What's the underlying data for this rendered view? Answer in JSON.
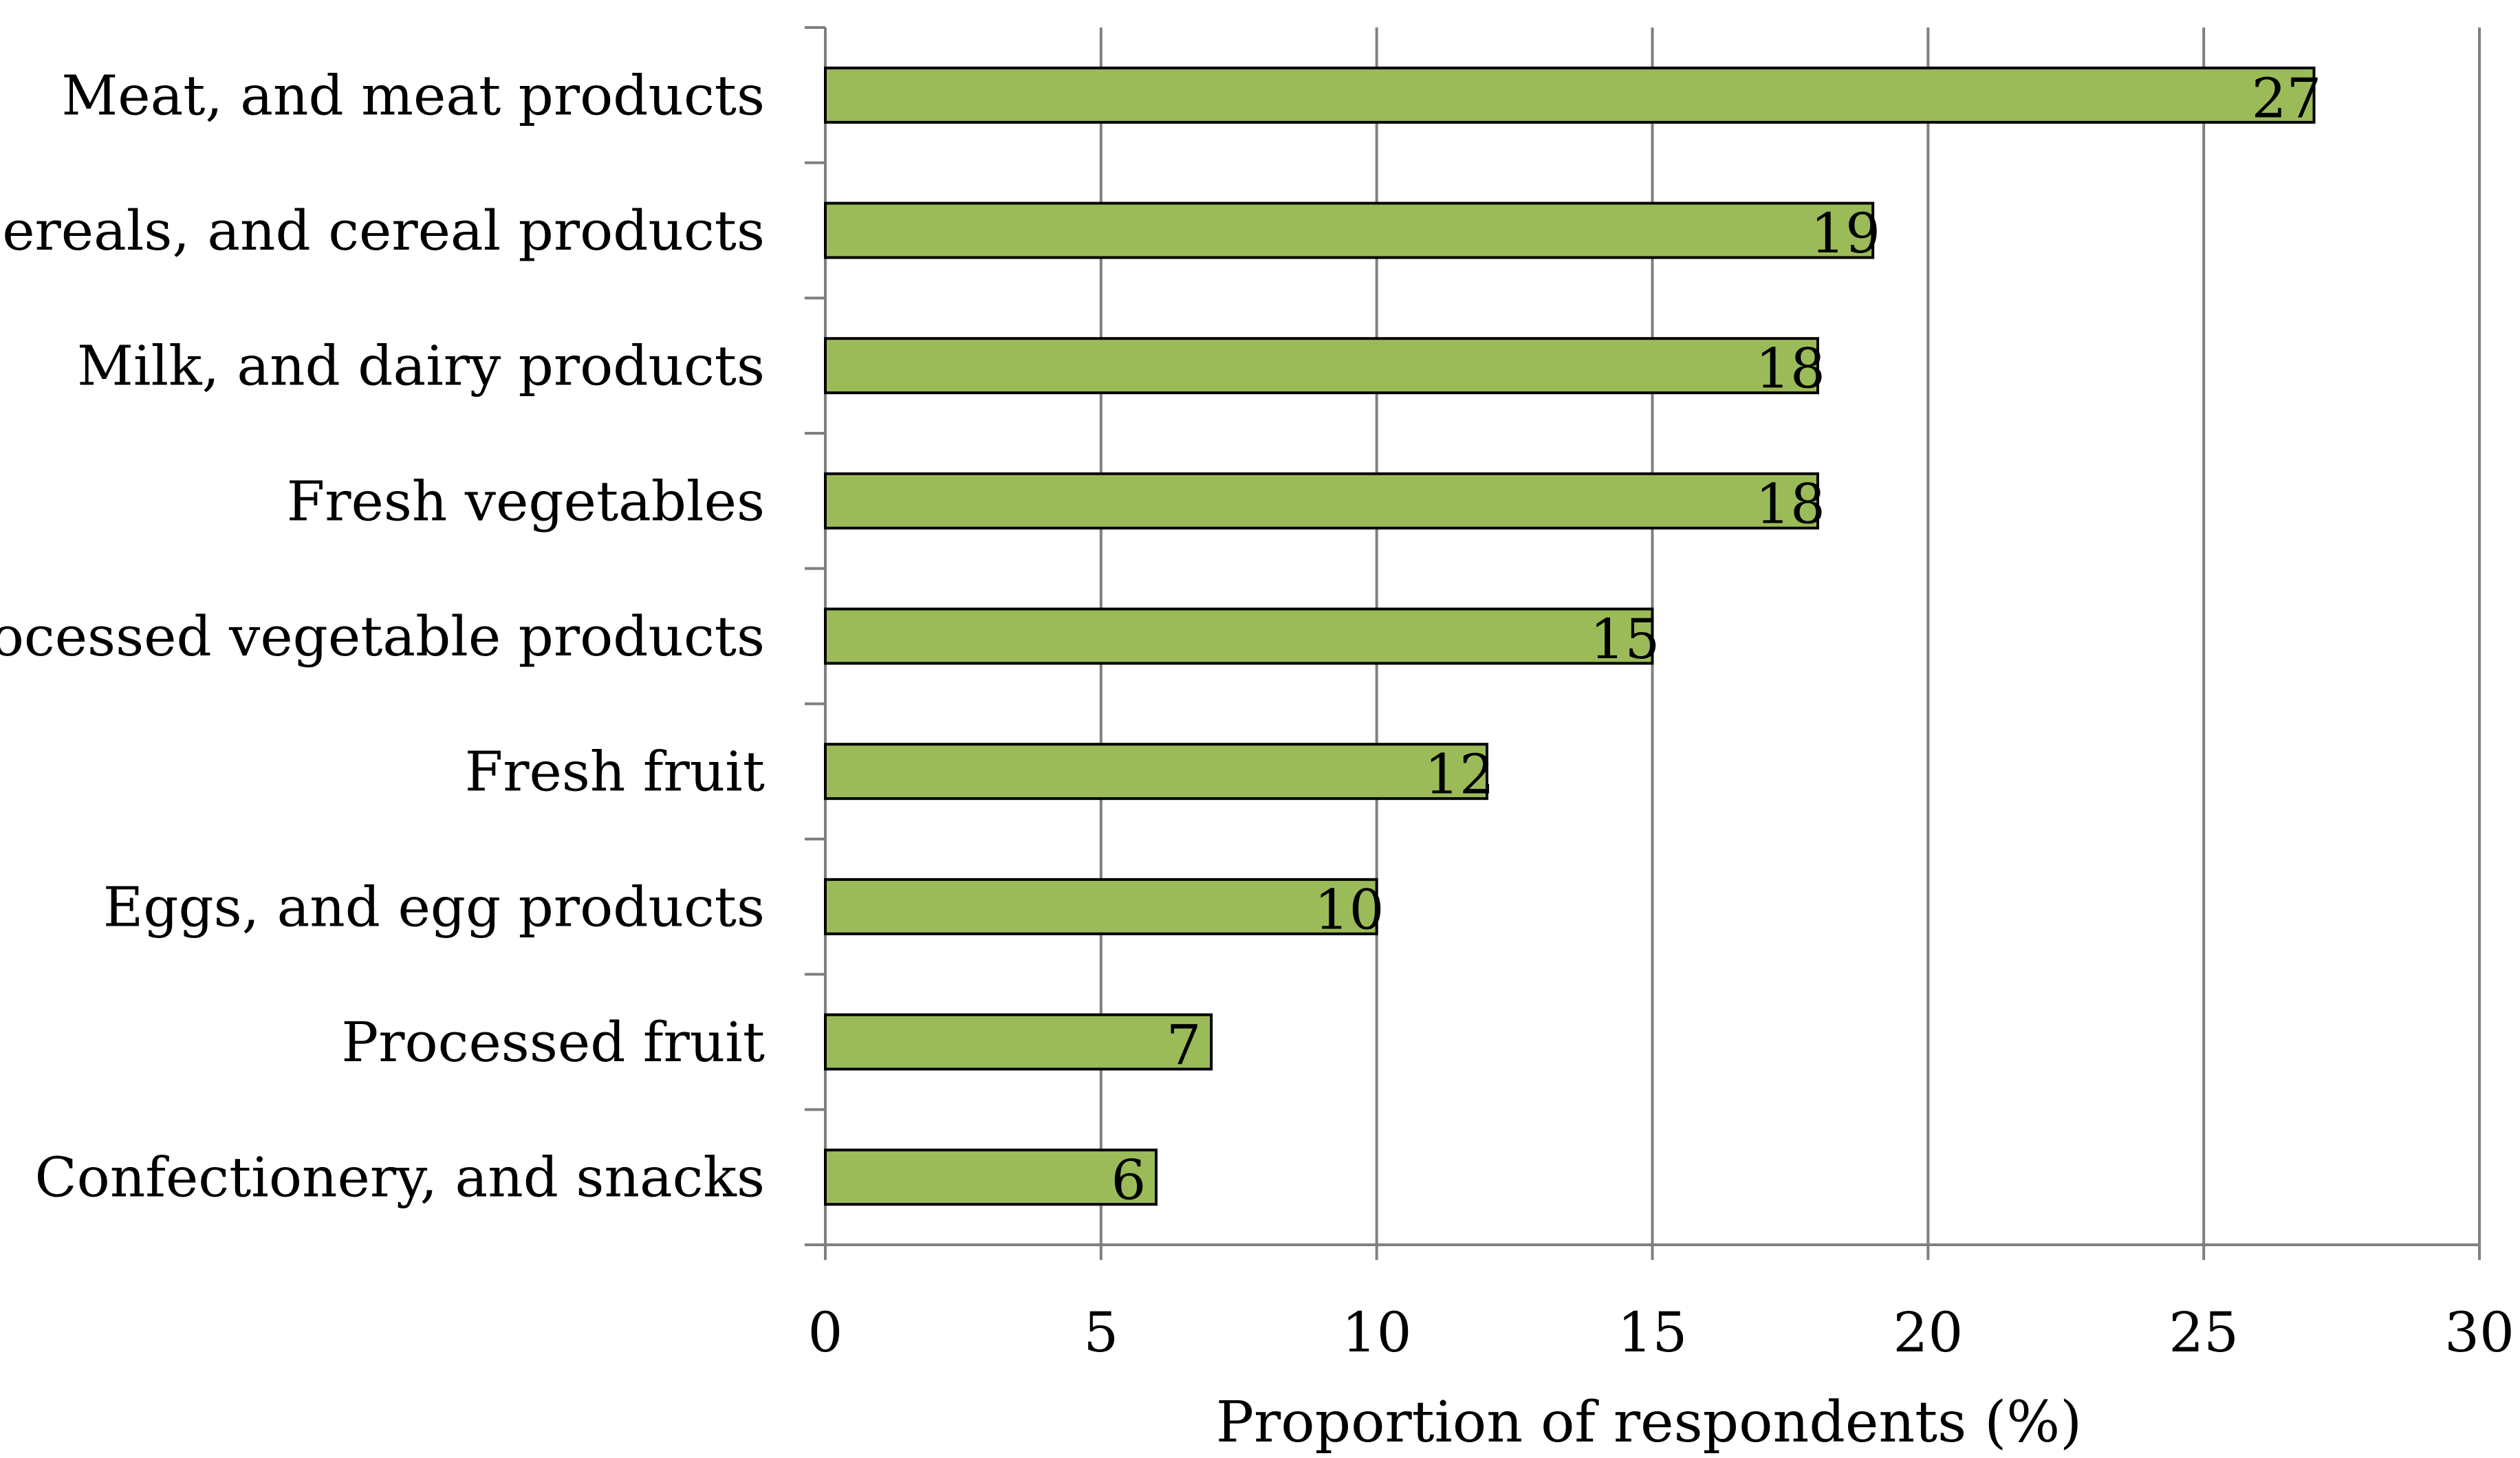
{
  "chart_data": {
    "type": "bar",
    "orientation": "horizontal",
    "title": "",
    "categories": [
      "Meat, and meat products",
      "Cereals, and cereal products",
      "Milk, and dairy products",
      "Fresh vegetables",
      "Processed vegetable products",
      "Fresh fruit",
      "Eggs, and egg products",
      "Processed fruit",
      "Confectionery, and snacks"
    ],
    "values": [
      27,
      19,
      18,
      18,
      15,
      12,
      10,
      7,
      6
    ],
    "xlabel": "Proportion of respondents (%)",
    "ylabel": "",
    "xlim": [
      0,
      30
    ],
    "xticks": [
      0,
      5,
      10,
      15,
      20,
      25,
      30
    ],
    "grid": true,
    "legend": "none",
    "colors": {
      "bar_fill": "#9BBB59",
      "bar_stroke": "#000000",
      "gridline": "#7F7F7F",
      "axis": "#7F7F7F"
    }
  }
}
